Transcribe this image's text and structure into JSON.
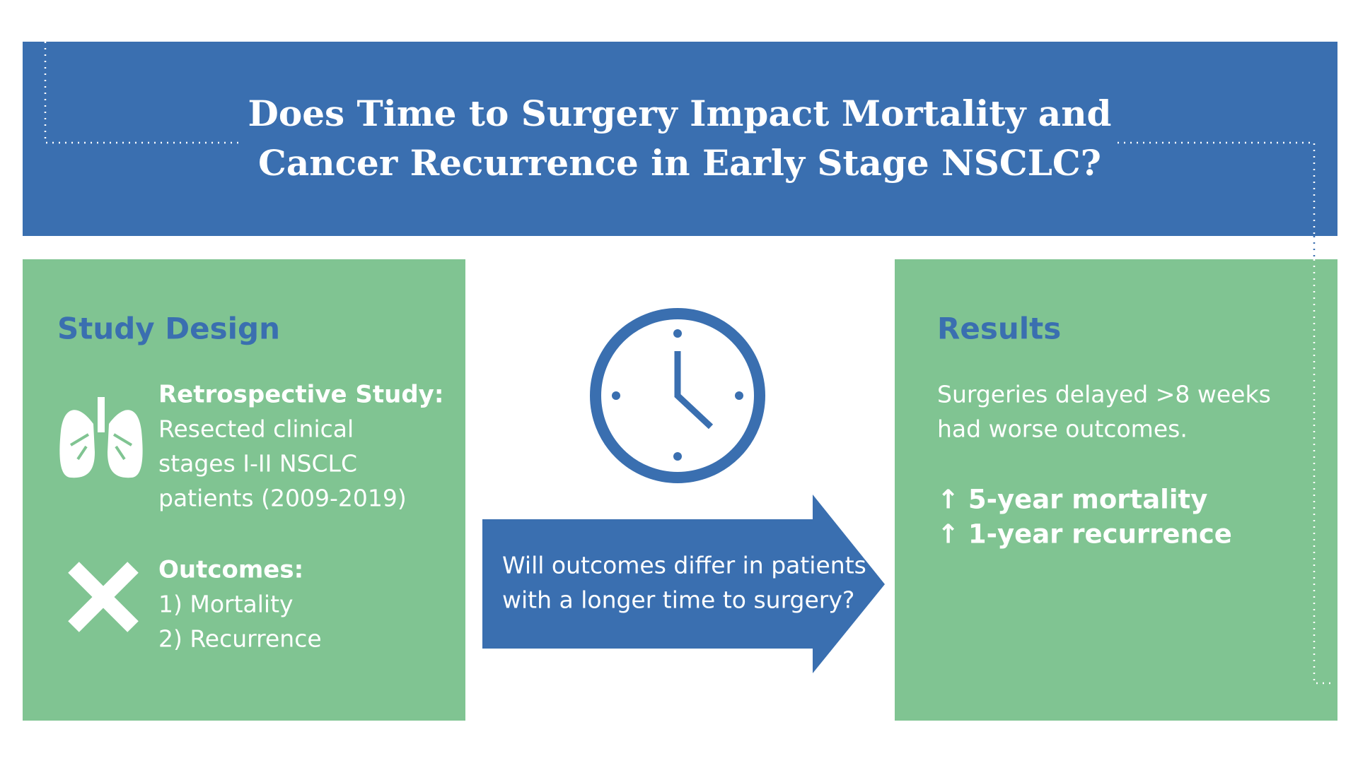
{
  "header": {
    "title": [
      "Does Time to Surgery Impact Mortality and",
      "Cancer Recurrence in Early Stage NSCLC?"
    ]
  },
  "study_design": {
    "heading": "Study Design",
    "items": [
      {
        "label": "Retrospective Study:",
        "lines": [
          "Resected clinical",
          "stages I-II NSCLC",
          "patients (2009-2019)"
        ]
      },
      {
        "label": "Outcomes:",
        "lines": [
          "1) Mortality",
          "2) Recurrence"
        ]
      }
    ]
  },
  "question": {
    "lines": [
      "Will outcomes differ in patients",
      "with a longer time to surgery?"
    ]
  },
  "results": {
    "heading": "Results",
    "lines": [
      "Surgeries delayed >8 weeks",
      "had worse outcomes."
    ],
    "findings": [
      "↑ 5-year mortality",
      "↑ 1-year recurrence"
    ]
  }
}
